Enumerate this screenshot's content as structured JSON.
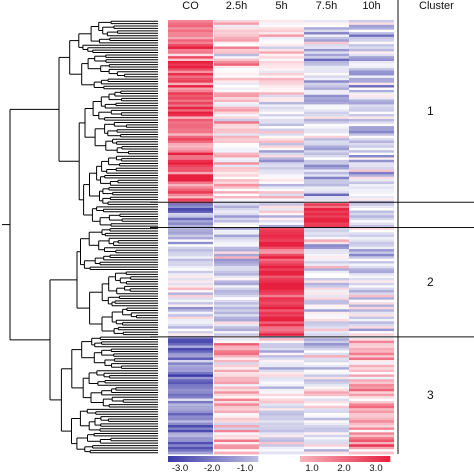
{
  "chart_data": {
    "type": "heatmap",
    "columns": [
      "CO",
      "2.5h",
      "5h",
      "7.5h",
      "10h"
    ],
    "cluster_title": "Cluster",
    "clusters": [
      {
        "label": "1",
        "row_fraction": [
          0.0,
          0.42
        ]
      },
      {
        "label": "",
        "row_fraction": [
          0.42,
          0.478
        ]
      },
      {
        "label": "2",
        "row_fraction": [
          0.478,
          0.73
        ]
      },
      {
        "label": "3",
        "row_fraction": [
          0.73,
          1.0
        ]
      }
    ],
    "cluster_profiles": [
      {
        "cluster": "1",
        "values": [
          2.0,
          0.6,
          -0.1,
          -0.8,
          -0.7
        ]
      },
      {
        "cluster": "",
        "values": [
          -1.8,
          -0.6,
          -0.3,
          2.5,
          -0.8
        ]
      },
      {
        "cluster": "2",
        "values": [
          -0.6,
          -0.6,
          2.5,
          -0.3,
          -0.6
        ]
      },
      {
        "cluster": "3",
        "values": [
          -1.8,
          0.7,
          -0.2,
          -0.4,
          1.0
        ]
      }
    ],
    "color_scale": {
      "min": -3.0,
      "max": 3.0,
      "negative_color": "#3b3aa8",
      "neutral_color": "#ffffff",
      "positive_color": "#e8203f"
    },
    "legend_ticks": [
      "-3.0",
      "-2.0",
      "-1.0",
      "1.0",
      "2.0",
      "3.0"
    ],
    "legend_tick_values": [
      -3.0,
      -2.0,
      -1.0,
      1.0,
      2.0,
      3.0
    ]
  }
}
